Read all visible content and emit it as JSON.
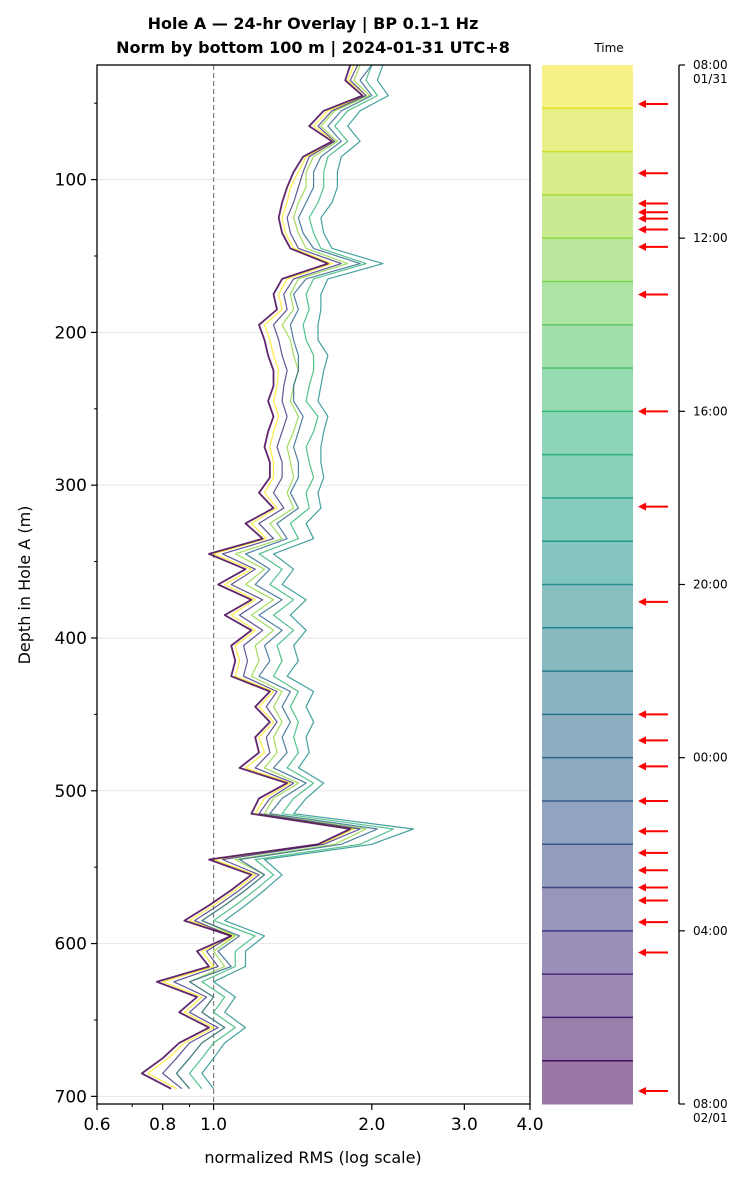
{
  "chart_data": {
    "type": "line",
    "title_line1": "Hole A — 24-hr Overlay  |  BP 0.1–1 Hz",
    "title_line2": "Norm by bottom 100 m  |  2024-01-31 UTC+8",
    "xlabel": "normalized RMS  (log scale)",
    "ylabel": "Depth in Hole A (m)",
    "x_scale": "log",
    "xlim": [
      0.6,
      4.0
    ],
    "ylim": [
      705,
      25
    ],
    "x_ticks": [
      {
        "value": 0.6,
        "label": "0.6"
      },
      {
        "value": 0.8,
        "label": "0.8"
      },
      {
        "value": 1.0,
        "label": "1.0"
      },
      {
        "value": 2.0,
        "label": "2.0"
      },
      {
        "value": 3.0,
        "label": "3.0"
      },
      {
        "value": 4.0,
        "label": "4.0"
      }
    ],
    "y_ticks": [
      {
        "value": 100,
        "label": "100"
      },
      {
        "value": 200,
        "label": "200"
      },
      {
        "value": 300,
        "label": "300"
      },
      {
        "value": 400,
        "label": "400"
      },
      {
        "value": 500,
        "label": "500"
      },
      {
        "value": 600,
        "label": "600"
      },
      {
        "value": 700,
        "label": "700"
      }
    ],
    "reference_line_x": 1.0,
    "grid": "horizontal at major y ticks",
    "profile_depths": [
      25,
      35,
      45,
      55,
      65,
      75,
      85,
      95,
      105,
      115,
      125,
      135,
      145,
      155,
      165,
      175,
      185,
      195,
      205,
      215,
      225,
      235,
      245,
      255,
      265,
      275,
      285,
      295,
      305,
      315,
      325,
      335,
      345,
      355,
      365,
      375,
      385,
      395,
      405,
      415,
      425,
      435,
      445,
      455,
      465,
      475,
      485,
      495,
      505,
      515,
      525,
      535,
      545,
      555,
      565,
      575,
      585,
      595,
      605,
      615,
      625,
      635,
      645,
      655,
      665,
      675,
      685,
      695
    ],
    "series": [
      {
        "time": "08:00",
        "values": [
          1.85,
          1.8,
          1.95,
          1.65,
          1.55,
          1.7,
          1.5,
          1.45,
          1.4,
          1.38,
          1.35,
          1.37,
          1.42,
          1.68,
          1.38,
          1.33,
          1.35,
          1.25,
          1.28,
          1.3,
          1.33,
          1.32,
          1.3,
          1.33,
          1.3,
          1.28,
          1.3,
          1.3,
          1.25,
          1.32,
          1.18,
          1.26,
          1.0,
          1.18,
          1.05,
          1.2,
          1.08,
          1.2,
          1.1,
          1.12,
          1.1,
          1.3,
          1.22,
          1.3,
          1.22,
          1.25,
          1.15,
          1.4,
          1.25,
          1.2,
          1.85,
          1.6,
          1.0,
          1.2,
          1.1,
          1.0,
          0.9,
          1.1,
          0.95,
          1.0,
          0.8,
          0.95,
          0.88,
          1.0,
          0.88,
          0.82,
          0.75,
          0.85
        ]
      },
      {
        "time": "12:00",
        "values": [
          1.9,
          1.85,
          1.98,
          1.7,
          1.6,
          1.72,
          1.55,
          1.5,
          1.5,
          1.45,
          1.42,
          1.45,
          1.5,
          1.8,
          1.45,
          1.4,
          1.42,
          1.35,
          1.4,
          1.42,
          1.45,
          1.42,
          1.4,
          1.45,
          1.42,
          1.38,
          1.4,
          1.42,
          1.38,
          1.42,
          1.28,
          1.35,
          1.1,
          1.25,
          1.15,
          1.3,
          1.18,
          1.3,
          1.2,
          1.22,
          1.18,
          1.35,
          1.3,
          1.35,
          1.3,
          1.32,
          1.25,
          1.45,
          1.3,
          1.25,
          1.95,
          1.7,
          1.1,
          1.25,
          1.15,
          1.05,
          0.95,
          1.1,
          1.0,
          1.05,
          0.9,
          1.0,
          0.95,
          1.05,
          0.95,
          0.9,
          0.85,
          0.9
        ]
      },
      {
        "time": "16:00",
        "values": [
          2.0,
          1.95,
          2.05,
          1.8,
          1.7,
          1.8,
          1.65,
          1.62,
          1.62,
          1.58,
          1.52,
          1.55,
          1.6,
          1.95,
          1.55,
          1.5,
          1.52,
          1.48,
          1.5,
          1.55,
          1.55,
          1.52,
          1.5,
          1.58,
          1.55,
          1.5,
          1.52,
          1.55,
          1.5,
          1.52,
          1.4,
          1.45,
          1.22,
          1.35,
          1.28,
          1.42,
          1.3,
          1.42,
          1.32,
          1.35,
          1.3,
          1.45,
          1.4,
          1.45,
          1.42,
          1.45,
          1.38,
          1.55,
          1.42,
          1.35,
          2.2,
          1.9,
          1.2,
          1.3,
          1.2,
          1.1,
          1.0,
          1.2,
          1.1,
          1.1,
          0.95,
          1.05,
          1.0,
          1.1,
          1.0,
          0.95,
          0.9,
          0.95
        ]
      },
      {
        "time": "20:00",
        "values": [
          2.1,
          2.05,
          2.15,
          1.9,
          1.8,
          1.9,
          1.75,
          1.72,
          1.72,
          1.68,
          1.6,
          1.62,
          1.68,
          2.1,
          1.65,
          1.6,
          1.6,
          1.58,
          1.58,
          1.65,
          1.62,
          1.6,
          1.58,
          1.65,
          1.62,
          1.6,
          1.6,
          1.62,
          1.58,
          1.6,
          1.5,
          1.55,
          1.3,
          1.42,
          1.35,
          1.5,
          1.4,
          1.5,
          1.42,
          1.45,
          1.38,
          1.55,
          1.5,
          1.55,
          1.5,
          1.52,
          1.45,
          1.62,
          1.5,
          1.42,
          2.4,
          2.0,
          1.25,
          1.35,
          1.25,
          1.15,
          1.05,
          1.25,
          1.15,
          1.15,
          1.0,
          1.1,
          1.05,
          1.15,
          1.05,
          1.0,
          0.95,
          1.0
        ]
      },
      {
        "time": "00:00",
        "values": [
          2.0,
          1.9,
          2.0,
          1.75,
          1.65,
          1.75,
          1.6,
          1.55,
          1.55,
          1.5,
          1.45,
          1.48,
          1.55,
          1.9,
          1.5,
          1.42,
          1.45,
          1.4,
          1.42,
          1.45,
          1.45,
          1.42,
          1.42,
          1.48,
          1.45,
          1.42,
          1.45,
          1.45,
          1.4,
          1.45,
          1.32,
          1.38,
          1.15,
          1.28,
          1.2,
          1.35,
          1.22,
          1.35,
          1.25,
          1.28,
          1.22,
          1.4,
          1.35,
          1.4,
          1.35,
          1.38,
          1.3,
          1.5,
          1.35,
          1.28,
          2.05,
          1.75,
          1.12,
          1.25,
          1.15,
          1.05,
          0.95,
          1.12,
          1.02,
          1.08,
          0.9,
          1.0,
          0.95,
          1.05,
          0.95,
          0.9,
          0.85,
          0.9
        ]
      },
      {
        "time": "04:00",
        "values": [
          1.88,
          1.82,
          1.95,
          1.68,
          1.58,
          1.7,
          1.52,
          1.48,
          1.45,
          1.42,
          1.38,
          1.4,
          1.45,
          1.75,
          1.42,
          1.36,
          1.38,
          1.3,
          1.33,
          1.35,
          1.38,
          1.36,
          1.35,
          1.38,
          1.35,
          1.32,
          1.35,
          1.35,
          1.3,
          1.36,
          1.22,
          1.3,
          1.04,
          1.2,
          1.08,
          1.24,
          1.12,
          1.24,
          1.14,
          1.16,
          1.14,
          1.32,
          1.26,
          1.32,
          1.26,
          1.28,
          1.2,
          1.42,
          1.28,
          1.22,
          1.9,
          1.62,
          1.04,
          1.22,
          1.12,
          1.02,
          0.92,
          1.08,
          0.97,
          1.02,
          0.84,
          0.97,
          0.9,
          1.02,
          0.9,
          0.85,
          0.8,
          0.87
        ]
      },
      {
        "time": "08:00",
        "values": [
          1.82,
          1.78,
          1.92,
          1.62,
          1.52,
          1.68,
          1.48,
          1.42,
          1.38,
          1.35,
          1.33,
          1.35,
          1.4,
          1.65,
          1.35,
          1.3,
          1.32,
          1.22,
          1.25,
          1.27,
          1.3,
          1.3,
          1.27,
          1.3,
          1.27,
          1.25,
          1.28,
          1.28,
          1.22,
          1.3,
          1.15,
          1.24,
          0.98,
          1.15,
          1.02,
          1.18,
          1.05,
          1.18,
          1.08,
          1.1,
          1.08,
          1.28,
          1.2,
          1.28,
          1.2,
          1.22,
          1.12,
          1.38,
          1.22,
          1.18,
          1.82,
          1.58,
          0.98,
          1.18,
          1.08,
          0.98,
          0.88,
          1.08,
          0.93,
          0.98,
          0.78,
          0.93,
          0.86,
          0.98,
          0.86,
          0.8,
          0.73,
          0.83
        ]
      }
    ],
    "colorbar": {
      "label": "Time",
      "tick_labels": [
        "08:00\n01/31",
        "12:00",
        "16:00",
        "20:00",
        "00:00",
        "04:00",
        "08:00\n02/01"
      ],
      "tick_hours": [
        0,
        4,
        8,
        12,
        16,
        20,
        24
      ],
      "band_count": 24,
      "colormap": "viridis (reversed: yellow at top, purple at bottom)",
      "arrow_hours": [
        0.9,
        2.5,
        3.2,
        3.4,
        3.55,
        3.8,
        4.2,
        5.3,
        8.0,
        10.2,
        12.4,
        15.0,
        15.6,
        16.2,
        17.0,
        17.7,
        18.2,
        18.6,
        19.0,
        19.3,
        19.8,
        20.5,
        23.7
      ],
      "arrow_color": "#ff0000"
    }
  }
}
